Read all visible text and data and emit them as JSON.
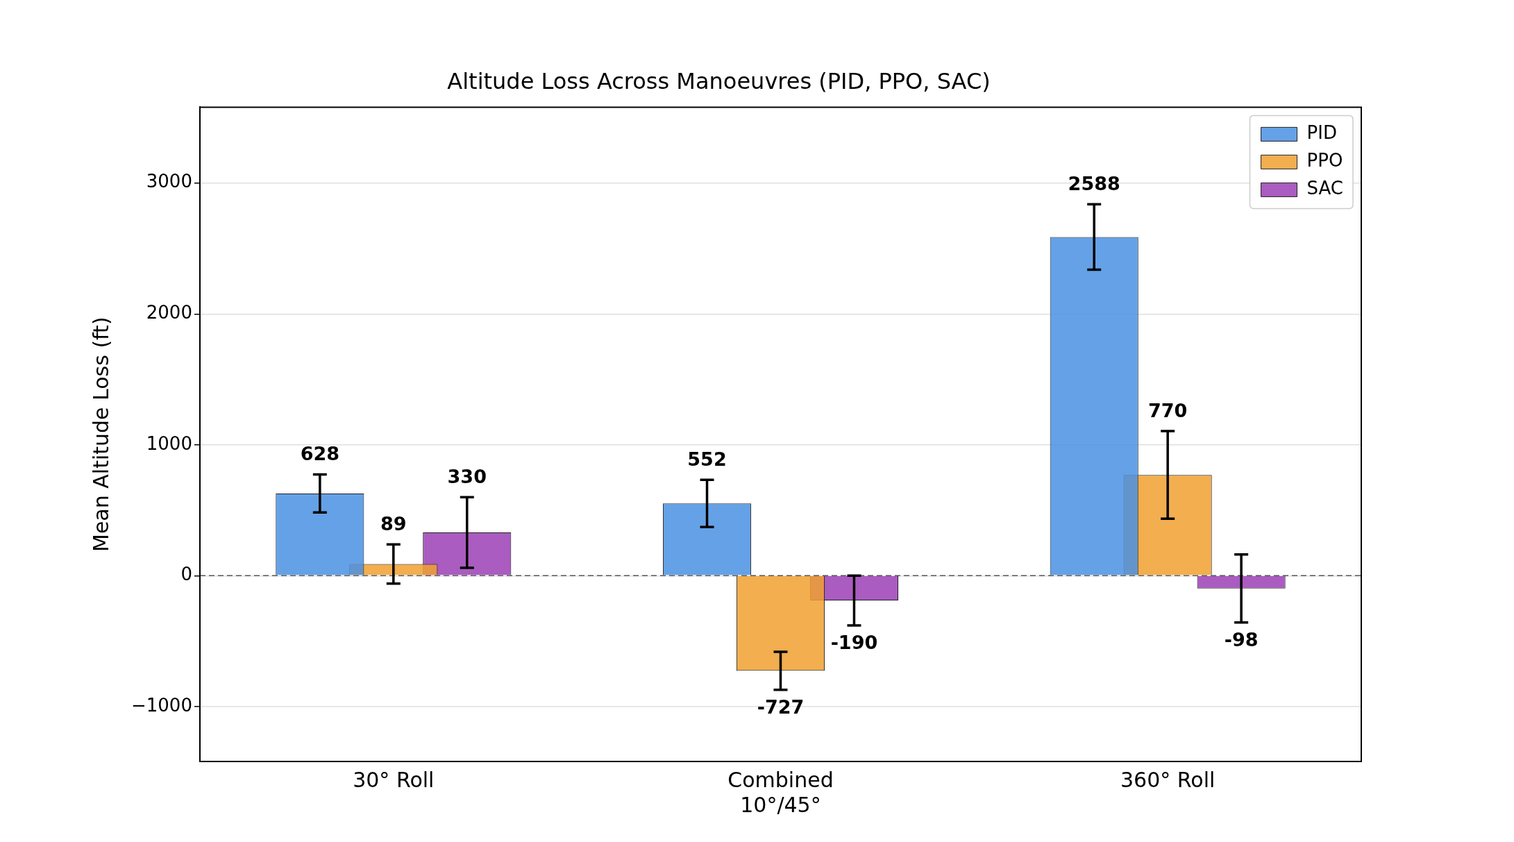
{
  "chart_data": {
    "type": "bar",
    "title": "Altitude Loss Across Manoeuvres (PID, PPO, SAC)",
    "ylabel": "Mean Altitude Loss (ft)",
    "categories": [
      "30° Roll",
      "Combined\n10°/45°",
      "360° Roll"
    ],
    "series": [
      {
        "name": "PID",
        "color": "#4a90e2",
        "values": [
          628,
          552,
          2588
        ],
        "errors": [
          145,
          180,
          250
        ]
      },
      {
        "name": "PPO",
        "color": "#f0a030",
        "values": [
          89,
          -727,
          770
        ],
        "errors": [
          150,
          145,
          335
        ]
      },
      {
        "name": "SAC",
        "color": "#9b3fb5",
        "values": [
          330,
          -190,
          -98
        ],
        "errors": [
          270,
          190,
          260
        ]
      }
    ],
    "ylim": [
      -1420,
      3580
    ],
    "yticks": [
      -1000,
      0,
      1000,
      2000,
      3000
    ],
    "grid": "y",
    "legend": "top right",
    "data_labels": true,
    "ref_lines": [
      {
        "axis": "y",
        "value": 0,
        "color": "#555555",
        "line_style": "dashed"
      }
    ]
  }
}
